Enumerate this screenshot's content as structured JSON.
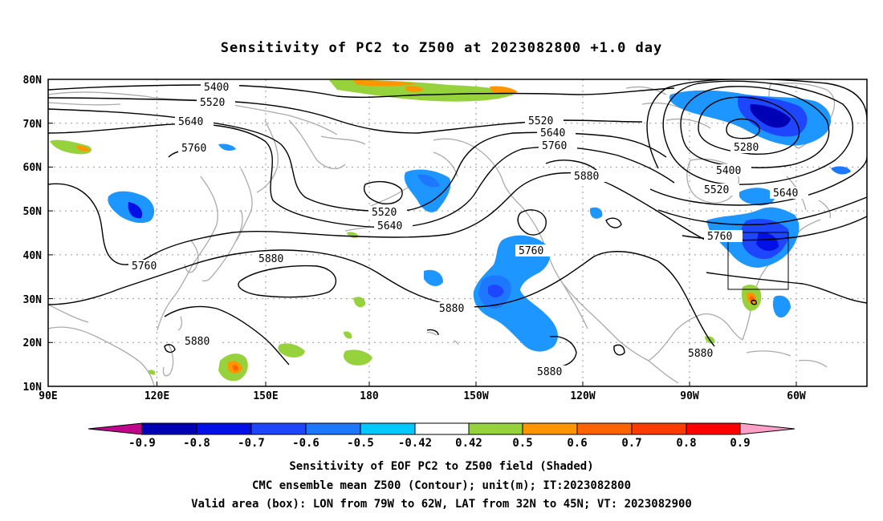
{
  "title": "Sensitivity of PC2 to Z500 at 2023082800 +1.0 day",
  "map": {
    "lat_labels": [
      "80N",
      "70N",
      "60N",
      "50N",
      "40N",
      "30N",
      "20N",
      "10N"
    ],
    "lon_labels": [
      "90E",
      "120E",
      "150E",
      "180",
      "150W",
      "120W",
      "90W",
      "60W"
    ],
    "contour_labels": [
      "5400",
      "5520",
      "5640",
      "5760",
      "5520",
      "5640",
      "5760",
      "5880",
      "5280",
      "5400",
      "5520",
      "5640",
      "5760",
      "5520",
      "5640",
      "5760",
      "5880",
      "5760",
      "5880",
      "5880",
      "5880",
      "5880"
    ],
    "contour_color": "#000000",
    "coast_color": "#aaaaaa",
    "grid_color": "#9a9a9a"
  },
  "colorbar": {
    "labels": [
      "-0.9",
      "-0.8",
      "-0.7",
      "-0.6",
      "-0.5",
      "-0.42",
      "0.42",
      "0.5",
      "0.6",
      "0.7",
      "0.8",
      "0.9"
    ],
    "colors": [
      "#c0068c",
      "#0000b4",
      "#0010e6",
      "#1e46ff",
      "#1e78ff",
      "#1e96ff",
      "#00c8ff",
      "#ffffff",
      "#96d23c",
      "#ff9600",
      "#ff6400",
      "#ff3c00",
      "#ff0000",
      "#ffa0c8"
    ]
  },
  "captions": [
    "Sensitivity of EOF PC2 to Z500 field (Shaded)",
    "CMC ensemble mean Z500 (Contour); unit(m); IT:2023082800",
    "Valid area (box): LON from 79W to 62W, LAT from 32N to 45N; VT: 2023082900"
  ]
}
